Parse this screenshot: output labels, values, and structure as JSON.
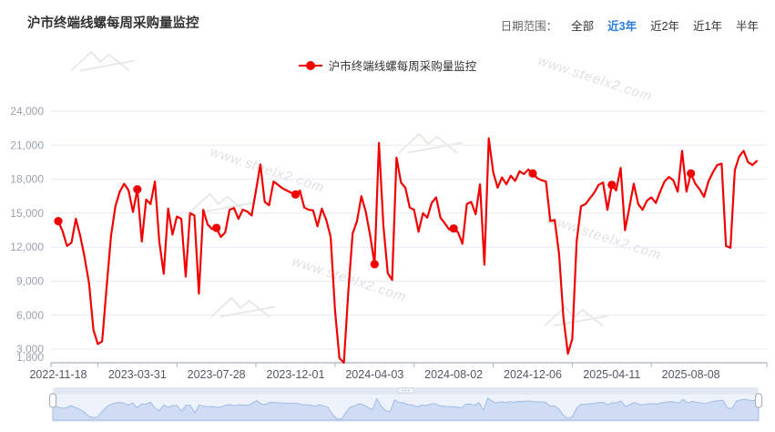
{
  "header": {
    "title": "沪市终端线螺每周采购量监控"
  },
  "date_range": {
    "label": "日期范围：",
    "options": [
      {
        "label": "全部",
        "selected": false
      },
      {
        "label": "近3年",
        "selected": true
      },
      {
        "label": "近2年",
        "selected": false
      },
      {
        "label": "近1年",
        "selected": false
      },
      {
        "label": "半年",
        "selected": false
      }
    ]
  },
  "legend": {
    "label": "沪市终端线螺每周采购量监控"
  },
  "watermark": {
    "text": "www.steelx2.com"
  },
  "colors": {
    "line": "#f20000",
    "accent_blue": "#2a7ce0",
    "grid_line": "#e7ebf3",
    "axis_line": "#aab2bf",
    "y_label": "#9aa3af",
    "x_label": "#4f5866",
    "slider_fill": "#cfdcf4",
    "slider_stroke": "#a3bbe3",
    "slider_bg": "#eef2fa",
    "slider_bar": "#e2e8f4"
  },
  "chart_data": {
    "type": "line",
    "title": "沪市终端线螺每周采购量监控",
    "series_name": "沪市终端线螺每周采购量监控",
    "frequency": "weekly",
    "legend_position": "top-center",
    "grid": "horizontal-only",
    "xlabel": "",
    "ylabel": "",
    "ylim": [
      1800,
      24000
    ],
    "y_ticks": [
      24000,
      21000,
      18000,
      15000,
      12000,
      9000,
      6000,
      3000
    ],
    "y_min_label": 1800,
    "x_tick_labels": [
      "2022-11-18",
      "2023-03-31",
      "2023-07-28",
      "2023-12-01",
      "2024-04-03",
      "2024-08-02",
      "2024-12-06",
      "2025-04-11",
      "2025-08-08"
    ],
    "x_tick_indices": [
      0,
      18,
      36,
      54,
      72,
      90,
      108,
      126,
      144
    ],
    "marked_indices": [
      0,
      18,
      36,
      54,
      72,
      90,
      108,
      126,
      144
    ],
    "marked_values": [
      14300,
      17100,
      13700,
      16650,
      10500,
      13650,
      18500,
      17500,
      18500
    ],
    "values": [
      14300,
      13400,
      12100,
      12400,
      14500,
      13000,
      11100,
      8800,
      4700,
      3450,
      3700,
      8500,
      13000,
      15600,
      16900,
      17600,
      17000,
      15100,
      17100,
      12500,
      16200,
      15800,
      17800,
      12500,
      9650,
      15400,
      13100,
      14700,
      14500,
      9400,
      15000,
      14800,
      7900,
      15300,
      14000,
      13600,
      13700,
      12900,
      13300,
      15300,
      15450,
      14500,
      15300,
      15150,
      14800,
      17000,
      19300,
      16000,
      15700,
      17800,
      17500,
      17200,
      17000,
      16800,
      16650,
      17000,
      15500,
      15300,
      15250,
      13840,
      15400,
      14400,
      12900,
      6400,
      2200,
      1800,
      8000,
      13200,
      14300,
      16500,
      15100,
      13000,
      10500,
      21200,
      13900,
      9700,
      9100,
      19900,
      17700,
      17250,
      15500,
      15300,
      13350,
      15000,
      14600,
      15900,
      16400,
      14600,
      14100,
      13550,
      13650,
      13300,
      12300,
      15800,
      16000,
      14900,
      17550,
      10450,
      21600,
      18600,
      17250,
      18150,
      17550,
      18300,
      17850,
      18700,
      18450,
      18850,
      18500,
      18100,
      17900,
      17800,
      14300,
      14400,
      11400,
      5800,
      2600,
      3900,
      12500,
      15600,
      15800,
      16300,
      16800,
      17500,
      17700,
      15300,
      17500,
      17000,
      19000,
      13500,
      15500,
      17600,
      15800,
      15300,
      16100,
      16400,
      15900,
      16900,
      17800,
      18200,
      17900,
      16900,
      20500,
      16900,
      18500,
      17600,
      17100,
      16450,
      17800,
      18600,
      19250,
      19370,
      12100,
      11950,
      18800,
      20000,
      20500,
      19500,
      19250,
      19600
    ]
  },
  "slider": {
    "type": "range-slider",
    "selected_range": "full"
  }
}
